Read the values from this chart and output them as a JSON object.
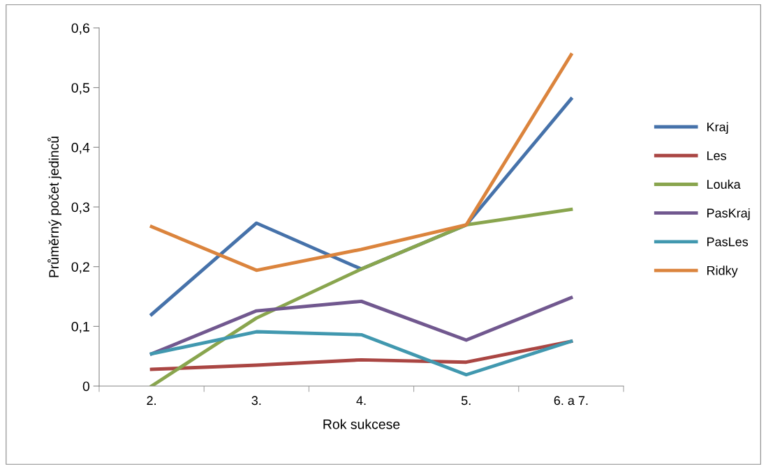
{
  "chart_data": {
    "type": "line",
    "xlabel": "Rok sukcese",
    "ylabel": "Průměrný počet jedinců",
    "categories": [
      "2.",
      "3.",
      "4.",
      "5.",
      "6. a 7."
    ],
    "ylim": [
      0,
      0.6
    ],
    "yticks": [
      {
        "value": 0,
        "label": "0"
      },
      {
        "value": 0.1,
        "label": "0,1"
      },
      {
        "value": 0.2,
        "label": "0,2"
      },
      {
        "value": 0.3,
        "label": "0,3"
      },
      {
        "value": 0.4,
        "label": "0,4"
      },
      {
        "value": 0.5,
        "label": "0,5"
      },
      {
        "value": 0.6,
        "label": "0,6"
      }
    ],
    "grid": false,
    "legend": "right",
    "marker": "none",
    "line_style": "solid",
    "series": [
      {
        "name": "Kraj",
        "color": "#4672aa",
        "values": [
          0.12,
          0.273,
          0.196,
          0.27,
          0.481
        ]
      },
      {
        "name": "Les",
        "color": "#aa4643",
        "values": [
          0.028,
          0.035,
          0.044,
          0.04,
          0.075
        ]
      },
      {
        "name": "Louka",
        "color": "#89a54e",
        "values": [
          0,
          0.114,
          0.196,
          0.27,
          0.296
        ]
      },
      {
        "name": "PasKraj",
        "color": "#71588f",
        "values": [
          0.054,
          0.126,
          0.142,
          0.077,
          0.148
        ]
      },
      {
        "name": "PasLes",
        "color": "#4198af",
        "values": [
          0.054,
          0.091,
          0.086,
          0.019,
          0.075
        ]
      },
      {
        "name": "Ridky",
        "color": "#db843d",
        "values": [
          0.267,
          0.194,
          0.229,
          0.27,
          0.555
        ]
      }
    ]
  }
}
